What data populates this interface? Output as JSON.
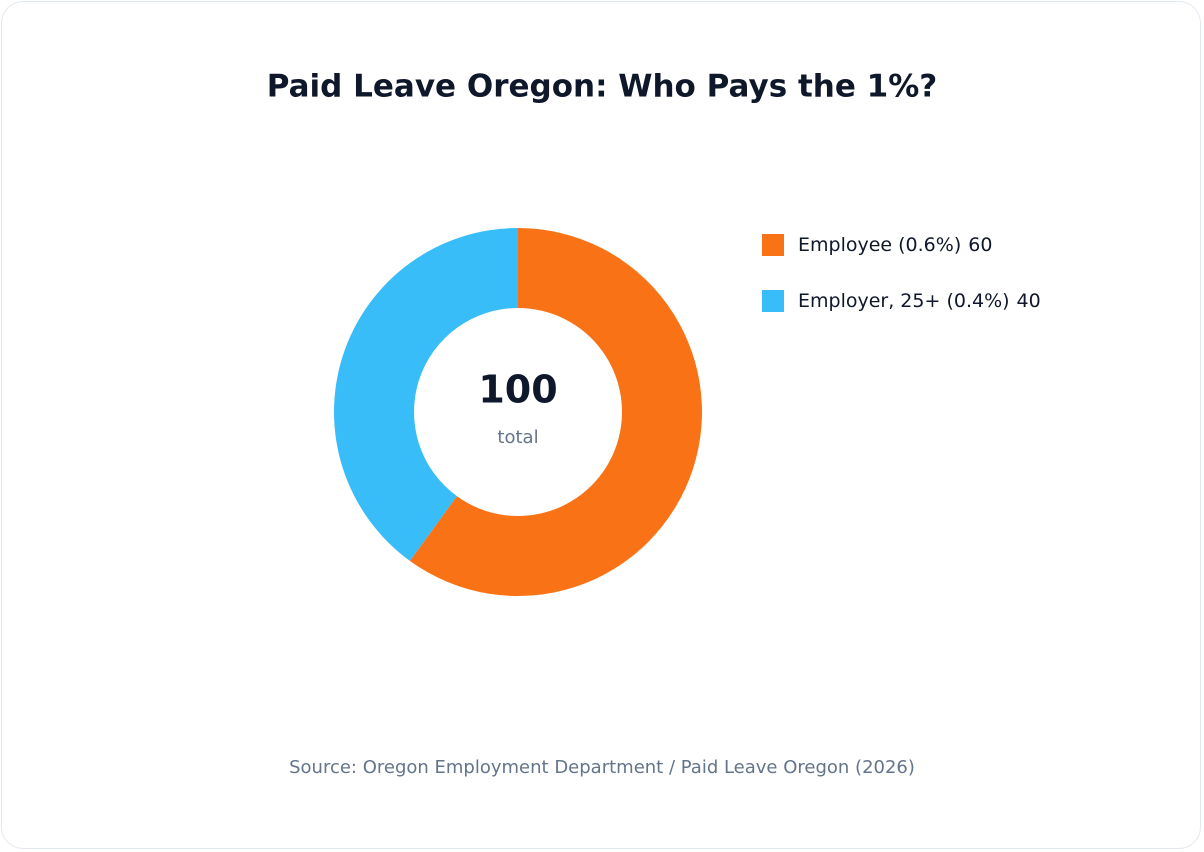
{
  "chart_data": {
    "type": "donut",
    "title": "Paid Leave Oregon: Who Pays the 1%?",
    "categories": [
      "Employee (0.6%)",
      "Employer, 25+ (0.4%)"
    ],
    "values": [
      60,
      40
    ],
    "colors": [
      "#f97316",
      "#38bdf8"
    ],
    "center_value": 100,
    "center_label": "total",
    "source": "Source: Oregon Employment Department / Paid Leave Oregon (2026)"
  }
}
